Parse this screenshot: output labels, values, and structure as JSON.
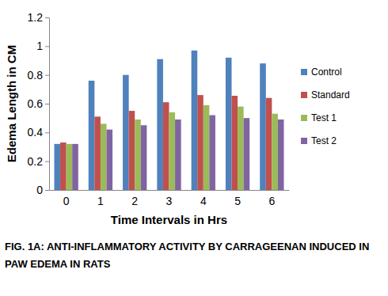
{
  "chart_data": {
    "type": "bar",
    "title": "FIG. 1A: ANTI-INFLAMMATORY ACTIVITY BY CARRAGEENAN INDUCED IN PAW EDEMA IN RATS",
    "x_label": "Time Intervals in Hrs",
    "y_label": "Edema Length in CM",
    "categories": [
      "0",
      "1",
      "2",
      "3",
      "4",
      "5",
      "6"
    ],
    "series": [
      {
        "name": "Control",
        "color": "#4f81bd",
        "values": [
          0.32,
          0.76,
          0.8,
          0.91,
          0.97,
          0.92,
          0.88
        ]
      },
      {
        "name": "Standard",
        "color": "#c0504d",
        "values": [
          0.33,
          0.51,
          0.55,
          0.61,
          0.66,
          0.655,
          0.64
        ]
      },
      {
        "name": "Test 1",
        "color": "#9bbb59",
        "values": [
          0.32,
          0.46,
          0.49,
          0.54,
          0.59,
          0.58,
          0.53
        ]
      },
      {
        "name": "Test 2",
        "color": "#8064a2",
        "values": [
          0.32,
          0.42,
          0.45,
          0.49,
          0.52,
          0.5,
          0.49
        ]
      }
    ],
    "ylim": [
      0,
      1.2
    ],
    "yticks": [
      0,
      0.2,
      0.4,
      0.6,
      0.8,
      1,
      1.2
    ],
    "grid": false,
    "legend": "right"
  }
}
